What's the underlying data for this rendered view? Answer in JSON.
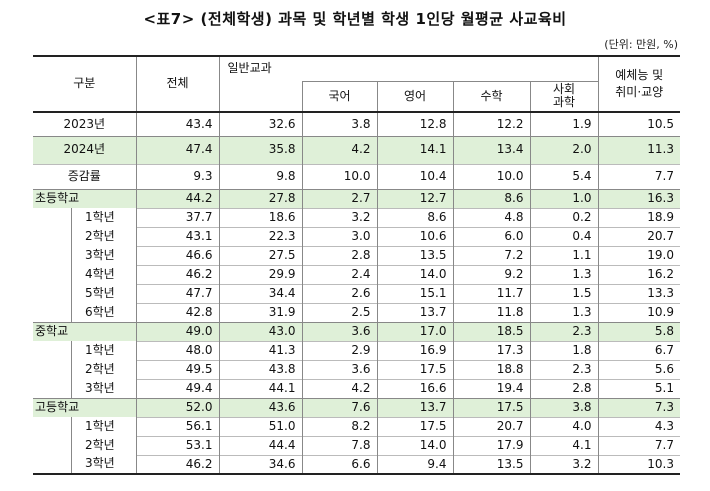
{
  "title": "<표7> (전체학생) 과목 및 학년별 학생 1인당 월평균 사교육비",
  "unit": "(단위: 만원, %)",
  "headers": {
    "category": "구분",
    "total": "전체",
    "general": "일반교과",
    "korean": "국어",
    "english": "영어",
    "math": "수학",
    "social_line1": "사회",
    "social_line2": "과학",
    "arts_line1": "예체능 및",
    "arts_line2": "취미·교양"
  },
  "rows": [
    {
      "label": "2023년",
      "kind": "year",
      "v": [
        "43.4",
        "32.6",
        "3.8",
        "12.8",
        "12.2",
        "1.9",
        "10.5"
      ]
    },
    {
      "label": "2024년",
      "kind": "year-hl",
      "v": [
        "47.4",
        "35.8",
        "4.2",
        "14.1",
        "13.4",
        "2.0",
        "11.3"
      ]
    },
    {
      "label": "증감률",
      "kind": "year",
      "v": [
        "9.3",
        "9.8",
        "10.0",
        "10.4",
        "10.0",
        "5.4",
        "7.7"
      ]
    },
    {
      "label": "초등학교",
      "kind": "group",
      "v": [
        "44.2",
        "27.8",
        "2.7",
        "12.7",
        "8.6",
        "1.0",
        "16.3"
      ]
    },
    {
      "label": "1학년",
      "kind": "sub",
      "v": [
        "37.7",
        "18.6",
        "3.2",
        "8.6",
        "4.8",
        "0.2",
        "18.9"
      ]
    },
    {
      "label": "2학년",
      "kind": "sub",
      "v": [
        "43.1",
        "22.3",
        "3.0",
        "10.6",
        "6.0",
        "0.4",
        "20.7"
      ]
    },
    {
      "label": "3학년",
      "kind": "sub",
      "v": [
        "46.6",
        "27.5",
        "2.8",
        "13.5",
        "7.2",
        "1.1",
        "19.0"
      ]
    },
    {
      "label": "4학년",
      "kind": "sub",
      "v": [
        "46.2",
        "29.9",
        "2.4",
        "14.0",
        "9.2",
        "1.3",
        "16.2"
      ]
    },
    {
      "label": "5학년",
      "kind": "sub",
      "v": [
        "47.7",
        "34.4",
        "2.6",
        "15.1",
        "11.7",
        "1.5",
        "13.3"
      ]
    },
    {
      "label": "6학년",
      "kind": "sub",
      "v": [
        "42.8",
        "31.9",
        "2.5",
        "13.7",
        "11.8",
        "1.3",
        "10.9"
      ]
    },
    {
      "label": "중학교",
      "kind": "group",
      "v": [
        "49.0",
        "43.0",
        "3.6",
        "17.0",
        "18.5",
        "2.3",
        "5.8"
      ]
    },
    {
      "label": "1학년",
      "kind": "sub",
      "v": [
        "48.0",
        "41.3",
        "2.9",
        "16.9",
        "17.3",
        "1.8",
        "6.7"
      ]
    },
    {
      "label": "2학년",
      "kind": "sub",
      "v": [
        "49.5",
        "43.8",
        "3.6",
        "17.5",
        "18.8",
        "2.3",
        "5.6"
      ]
    },
    {
      "label": "3학년",
      "kind": "sub",
      "v": [
        "49.4",
        "44.1",
        "4.2",
        "16.6",
        "19.4",
        "2.8",
        "5.1"
      ]
    },
    {
      "label": "고등학교",
      "kind": "group",
      "v": [
        "52.0",
        "43.6",
        "7.6",
        "13.7",
        "17.5",
        "3.8",
        "7.3"
      ]
    },
    {
      "label": "1학년",
      "kind": "sub",
      "v": [
        "56.1",
        "51.0",
        "8.2",
        "17.5",
        "20.7",
        "4.0",
        "4.3"
      ]
    },
    {
      "label": "2학년",
      "kind": "sub",
      "v": [
        "53.1",
        "44.4",
        "7.8",
        "14.0",
        "17.9",
        "4.1",
        "7.7"
      ]
    },
    {
      "label": "3학년",
      "kind": "sub",
      "v": [
        "46.2",
        "34.6",
        "6.6",
        "9.4",
        "13.5",
        "3.2",
        "10.3"
      ]
    }
  ],
  "colors": {
    "highlight": "#dff0d8"
  }
}
